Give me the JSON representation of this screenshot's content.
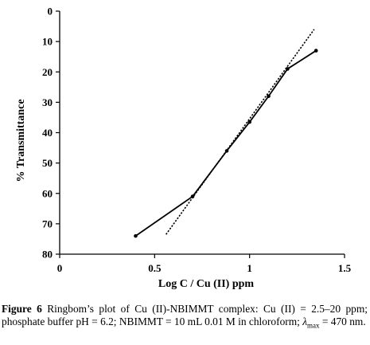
{
  "chart_data": {
    "type": "line",
    "xlabel": "Log C / Cu (II) ppm",
    "ylabel": "% Transmittance",
    "xlim": [
      0,
      1.5
    ],
    "ylim": [
      0,
      80
    ],
    "y_inverted": true,
    "x_ticks": [
      "0",
      "0.5",
      "1",
      "1.5"
    ],
    "y_ticks": [
      "0",
      "10",
      "20",
      "30",
      "40",
      "50",
      "60",
      "70",
      "80"
    ],
    "grid": false,
    "legend": "none",
    "series": [
      {
        "style": "solid-with-markers",
        "color": "#000000",
        "x": [
          0.4,
          0.7,
          0.88,
          1.0,
          1.1,
          1.2,
          1.35
        ],
        "y": [
          74,
          61,
          46,
          36.5,
          28,
          19,
          13
        ]
      },
      {
        "style": "dotted-tangent",
        "color": "#000000",
        "x": [
          0.56,
          1.34
        ],
        "y": [
          73.5,
          6
        ]
      }
    ]
  },
  "caption": {
    "label": "Figure 6",
    "text": " Ringbom’s plot of Cu (II)-NBIMMT complex: Cu (II) = 2.5–20 ppm; phosphate buffer pH = 6.2; NBIMMT = 10 mL 0.01 M in chloroform; ",
    "lambda_symbol": "λ",
    "lambda_sub": "max",
    "lambda_value": " = 470 nm."
  }
}
